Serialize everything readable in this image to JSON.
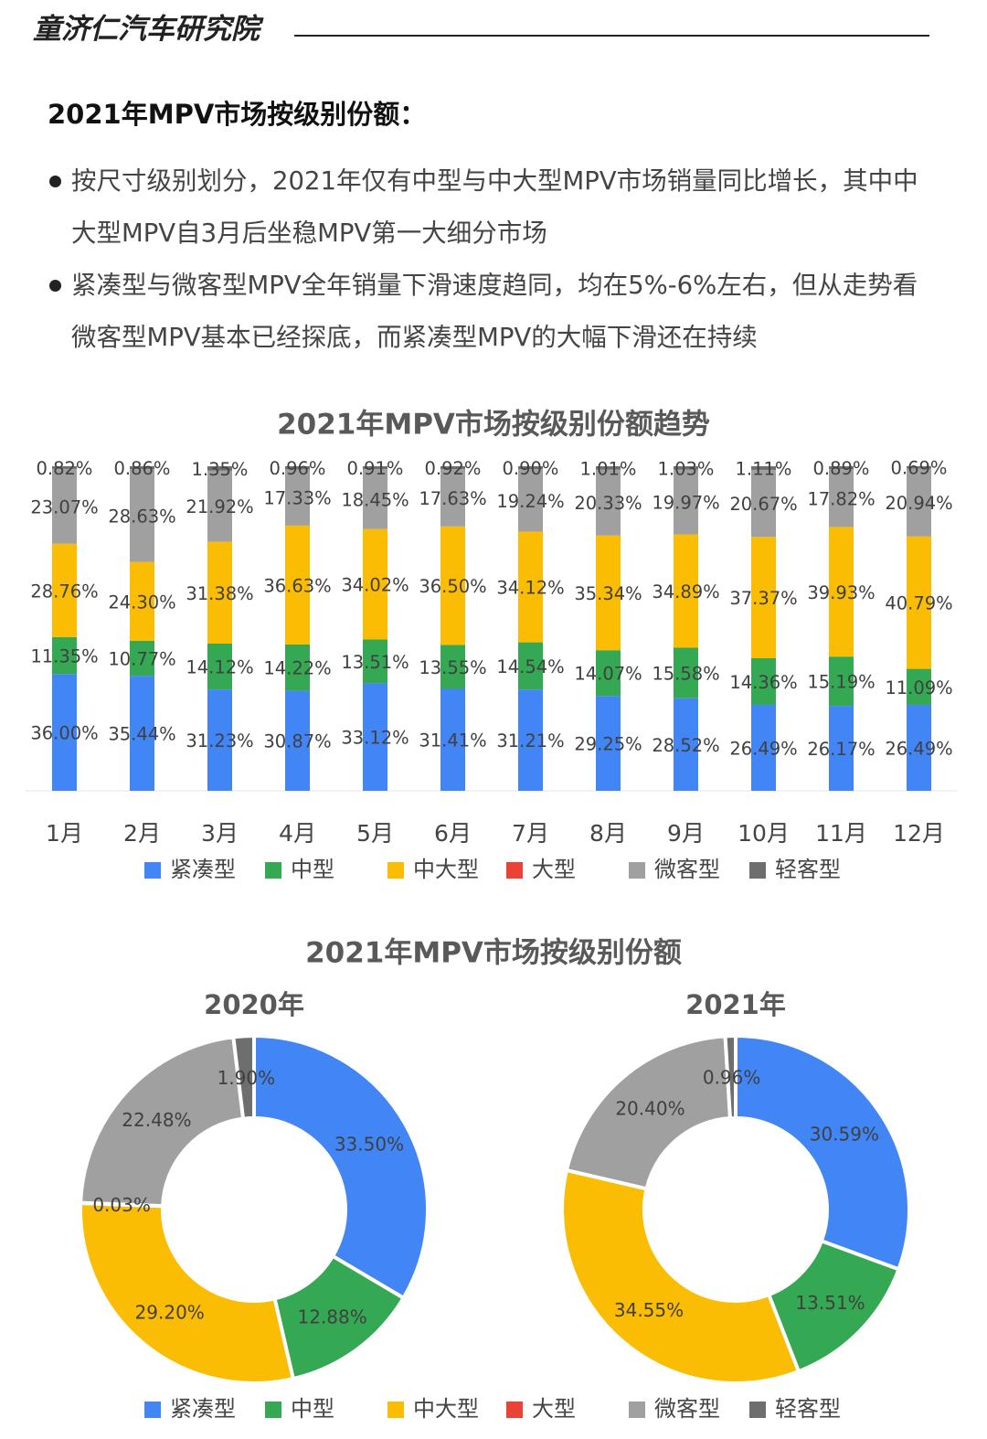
{
  "header": {
    "brand": "童济仁汽车研究院"
  },
  "heading": "2021年MPV市场按级别份额：",
  "bullets": [
    "按尺寸级别划分，2021年仅有中型与中大型MPV市场销量同比增长，其中中大型MPV自3月后坐稳MPV第一大细分市场",
    "紧凑型与微客型MPV全年销量下滑速度趋同，均在5%-6%左右，但从走势看微客型MPV基本已经探底，而紧凑型MPV的大幅下滑还在持续"
  ],
  "chart_data": [
    {
      "type": "bar",
      "stacked": true,
      "title": "2021年MPV市场按级别份额趋势",
      "categories": [
        "1月",
        "2月",
        "3月",
        "4月",
        "5月",
        "6月",
        "7月",
        "8月",
        "9月",
        "10月",
        "11月",
        "12月"
      ],
      "ylim": [
        0,
        100
      ],
      "series": [
        {
          "name": "紧凑型",
          "color": "#4285f4",
          "values": [
            36,
            35.44,
            31.23,
            30.87,
            33.12,
            31.41,
            31.21,
            29.25,
            28.52,
            26.49,
            26.17,
            26.49
          ],
          "value_labels": [
            "36.00%",
            "35.44%",
            "31.23%",
            "30.87%",
            "33.12%",
            "31.41%",
            "31.21%",
            "29.25%",
            "28.52%",
            "26.49%",
            "26.17%",
            "26.49%"
          ]
        },
        {
          "name": "中型",
          "color": "#34a853",
          "values": [
            11.35,
            10.77,
            14.12,
            14.22,
            13.51,
            13.55,
            14.54,
            14.07,
            15.58,
            14.36,
            15.19,
            11.09
          ],
          "value_labels": [
            "11.35%",
            "10.77%",
            "14.12%",
            "14.22%",
            "13.51%",
            "13.55%",
            "14.54%",
            "14.07%",
            "15.58%",
            "14.36%",
            "15.19%",
            "11.09%"
          ]
        },
        {
          "name": "中大型",
          "color": "#fbbc04",
          "values": [
            28.76,
            24.3,
            31.38,
            36.63,
            34.02,
            36.5,
            34.12,
            35.34,
            34.89,
            37.37,
            39.93,
            40.79
          ],
          "value_labels": [
            "28.76%",
            "24.30%",
            "31.38%",
            "36.63%",
            "34.02%",
            "36.50%",
            "34.12%",
            "35.34%",
            "34.89%",
            "37.37%",
            "39.93%",
            "40.79%"
          ]
        },
        {
          "name": "大型",
          "color": "#ea4335",
          "values": [
            0,
            0,
            0,
            0,
            0,
            0,
            0,
            0,
            0,
            0,
            0,
            0
          ]
        },
        {
          "name": "微客型",
          "color": "#a0a0a0",
          "values": [
            23.07,
            28.63,
            21.92,
            17.33,
            18.45,
            17.63,
            19.24,
            20.33,
            19.97,
            20.67,
            17.82,
            20.94
          ],
          "value_labels": [
            "23.07%",
            "28.63%",
            "21.92%",
            "17.33%",
            "18.45%",
            "17.63%",
            "19.24%",
            "20.33%",
            "19.97%",
            "20.67%",
            "17.82%",
            "20.94%"
          ]
        },
        {
          "name": "轻客型",
          "color": "#6e6e6e",
          "values": [
            0.82,
            0.86,
            1.35,
            0.96,
            0.91,
            0.92,
            0.9,
            1.01,
            1.03,
            1.11,
            0.89,
            0.69
          ],
          "value_labels": [
            "0.82%",
            "0.86%",
            "1.35%",
            "0.96%",
            "0.91%",
            "0.92%",
            "0.90%",
            "1.01%",
            "1.03%",
            "1.11%",
            "0.89%",
            "0.69%"
          ]
        }
      ]
    },
    {
      "type": "pie",
      "donut": true,
      "title": "2021年MPV市场按级别份额",
      "categories": [
        "紧凑型",
        "中型",
        "中大型",
        "大型",
        "微客型",
        "轻客型"
      ],
      "colors": [
        "#4285f4",
        "#34a853",
        "#fbbc04",
        "#ea4335",
        "#a0a0a0",
        "#6e6e6e"
      ],
      "series": [
        {
          "name": "2020年",
          "values": [
            33.5,
            12.88,
            29.2,
            0.03,
            22.48,
            1.9
          ],
          "value_labels": [
            "33.50%",
            "12.88%",
            "29.20%",
            "0.03%",
            "22.48%",
            "1.90%"
          ]
        },
        {
          "name": "2021年",
          "values": [
            30.59,
            13.51,
            34.55,
            0,
            20.4,
            0.96
          ],
          "value_labels": [
            "30.59%",
            "13.51%",
            "34.55%",
            null,
            "20.40%",
            "0.96%"
          ]
        }
      ]
    }
  ]
}
